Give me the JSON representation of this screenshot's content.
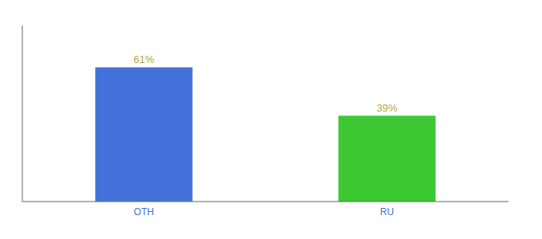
{
  "chart_data": {
    "type": "bar",
    "categories": [
      "OTH",
      "RU"
    ],
    "values": [
      61,
      39
    ],
    "value_labels": [
      "61%",
      "39%"
    ],
    "colors": [
      "#4472db",
      "#3cc832"
    ],
    "ylim": [
      0,
      80
    ],
    "data_labels": true,
    "tick_labels": "x"
  }
}
